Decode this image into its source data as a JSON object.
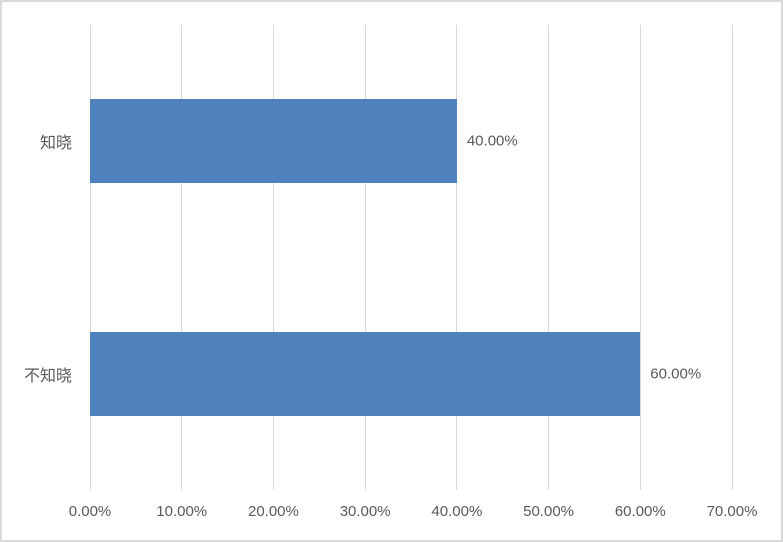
{
  "chart_style": {
    "background": "#FFFFFF",
    "border_color": "#D9D9D9",
    "gridline_color": "#D9D9D9",
    "bar_color": "#4F81BD",
    "text_color": "#595959"
  },
  "chart_data": {
    "type": "bar",
    "orientation": "horizontal",
    "title": "",
    "xlabel": "",
    "ylabel": "",
    "categories": [
      "知晓",
      "不知晓"
    ],
    "values": [
      40,
      60
    ],
    "data_labels": [
      "40.00%",
      "60.00%"
    ],
    "x_ticks": [
      "0.00%",
      "10.00%",
      "20.00%",
      "30.00%",
      "40.00%",
      "50.00%",
      "60.00%",
      "70.00%"
    ],
    "x_tick_values": [
      0,
      10,
      20,
      30,
      40,
      50,
      60,
      70
    ],
    "xlim": [
      0,
      70
    ],
    "grid": true,
    "legend": false
  }
}
